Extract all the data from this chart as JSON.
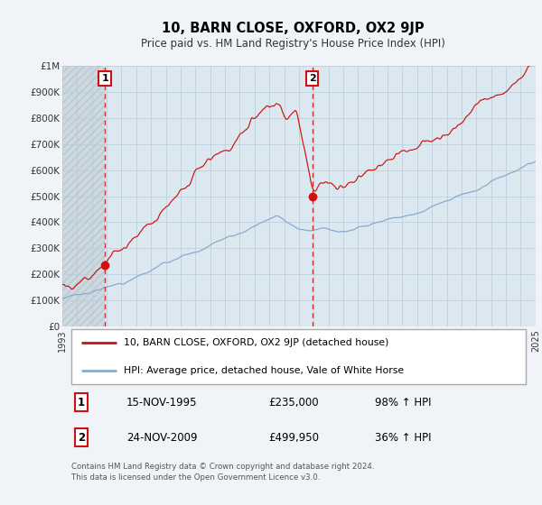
{
  "title": "10, BARN CLOSE, OXFORD, OX2 9JP",
  "subtitle": "Price paid vs. HM Land Registry's House Price Index (HPI)",
  "bg_color": "#f0f4f8",
  "plot_bg_color": "#dce8f0",
  "plot_bg_hatch_color": "#c8d8e8",
  "red_line_color": "#cc1111",
  "blue_line_color": "#88aacc",
  "grid_color": "#b8ccd8",
  "sale1_year": 1995.88,
  "sale1_price": 235000,
  "sale1_label": "15-NOV-1995",
  "sale1_amount": "£235,000",
  "sale1_pct": "98% ↑ HPI",
  "sale2_year": 2009.9,
  "sale2_price": 499950,
  "sale2_label": "24-NOV-2009",
  "sale2_amount": "£499,950",
  "sale2_pct": "36% ↑ HPI",
  "xmin": 1993,
  "xmax": 2025,
  "ymin": 0,
  "ymax": 1000000,
  "yticks": [
    0,
    100000,
    200000,
    300000,
    400000,
    500000,
    600000,
    700000,
    800000,
    900000,
    1000000
  ],
  "ytick_labels": [
    "£0",
    "£100K",
    "£200K",
    "£300K",
    "£400K",
    "£500K",
    "£600K",
    "£700K",
    "£800K",
    "£900K",
    "£1M"
  ],
  "xticks": [
    1993,
    1994,
    1995,
    1996,
    1997,
    1998,
    1999,
    2000,
    2001,
    2002,
    2003,
    2004,
    2005,
    2006,
    2007,
    2008,
    2009,
    2010,
    2011,
    2012,
    2013,
    2014,
    2015,
    2016,
    2017,
    2018,
    2019,
    2020,
    2021,
    2022,
    2023,
    2024,
    2025
  ],
  "legend_red": "10, BARN CLOSE, OXFORD, OX2 9JP (detached house)",
  "legend_blue": "HPI: Average price, detached house, Vale of White Horse",
  "footer": "Contains HM Land Registry data © Crown copyright and database right 2024.\nThis data is licensed under the Open Government Licence v3.0."
}
